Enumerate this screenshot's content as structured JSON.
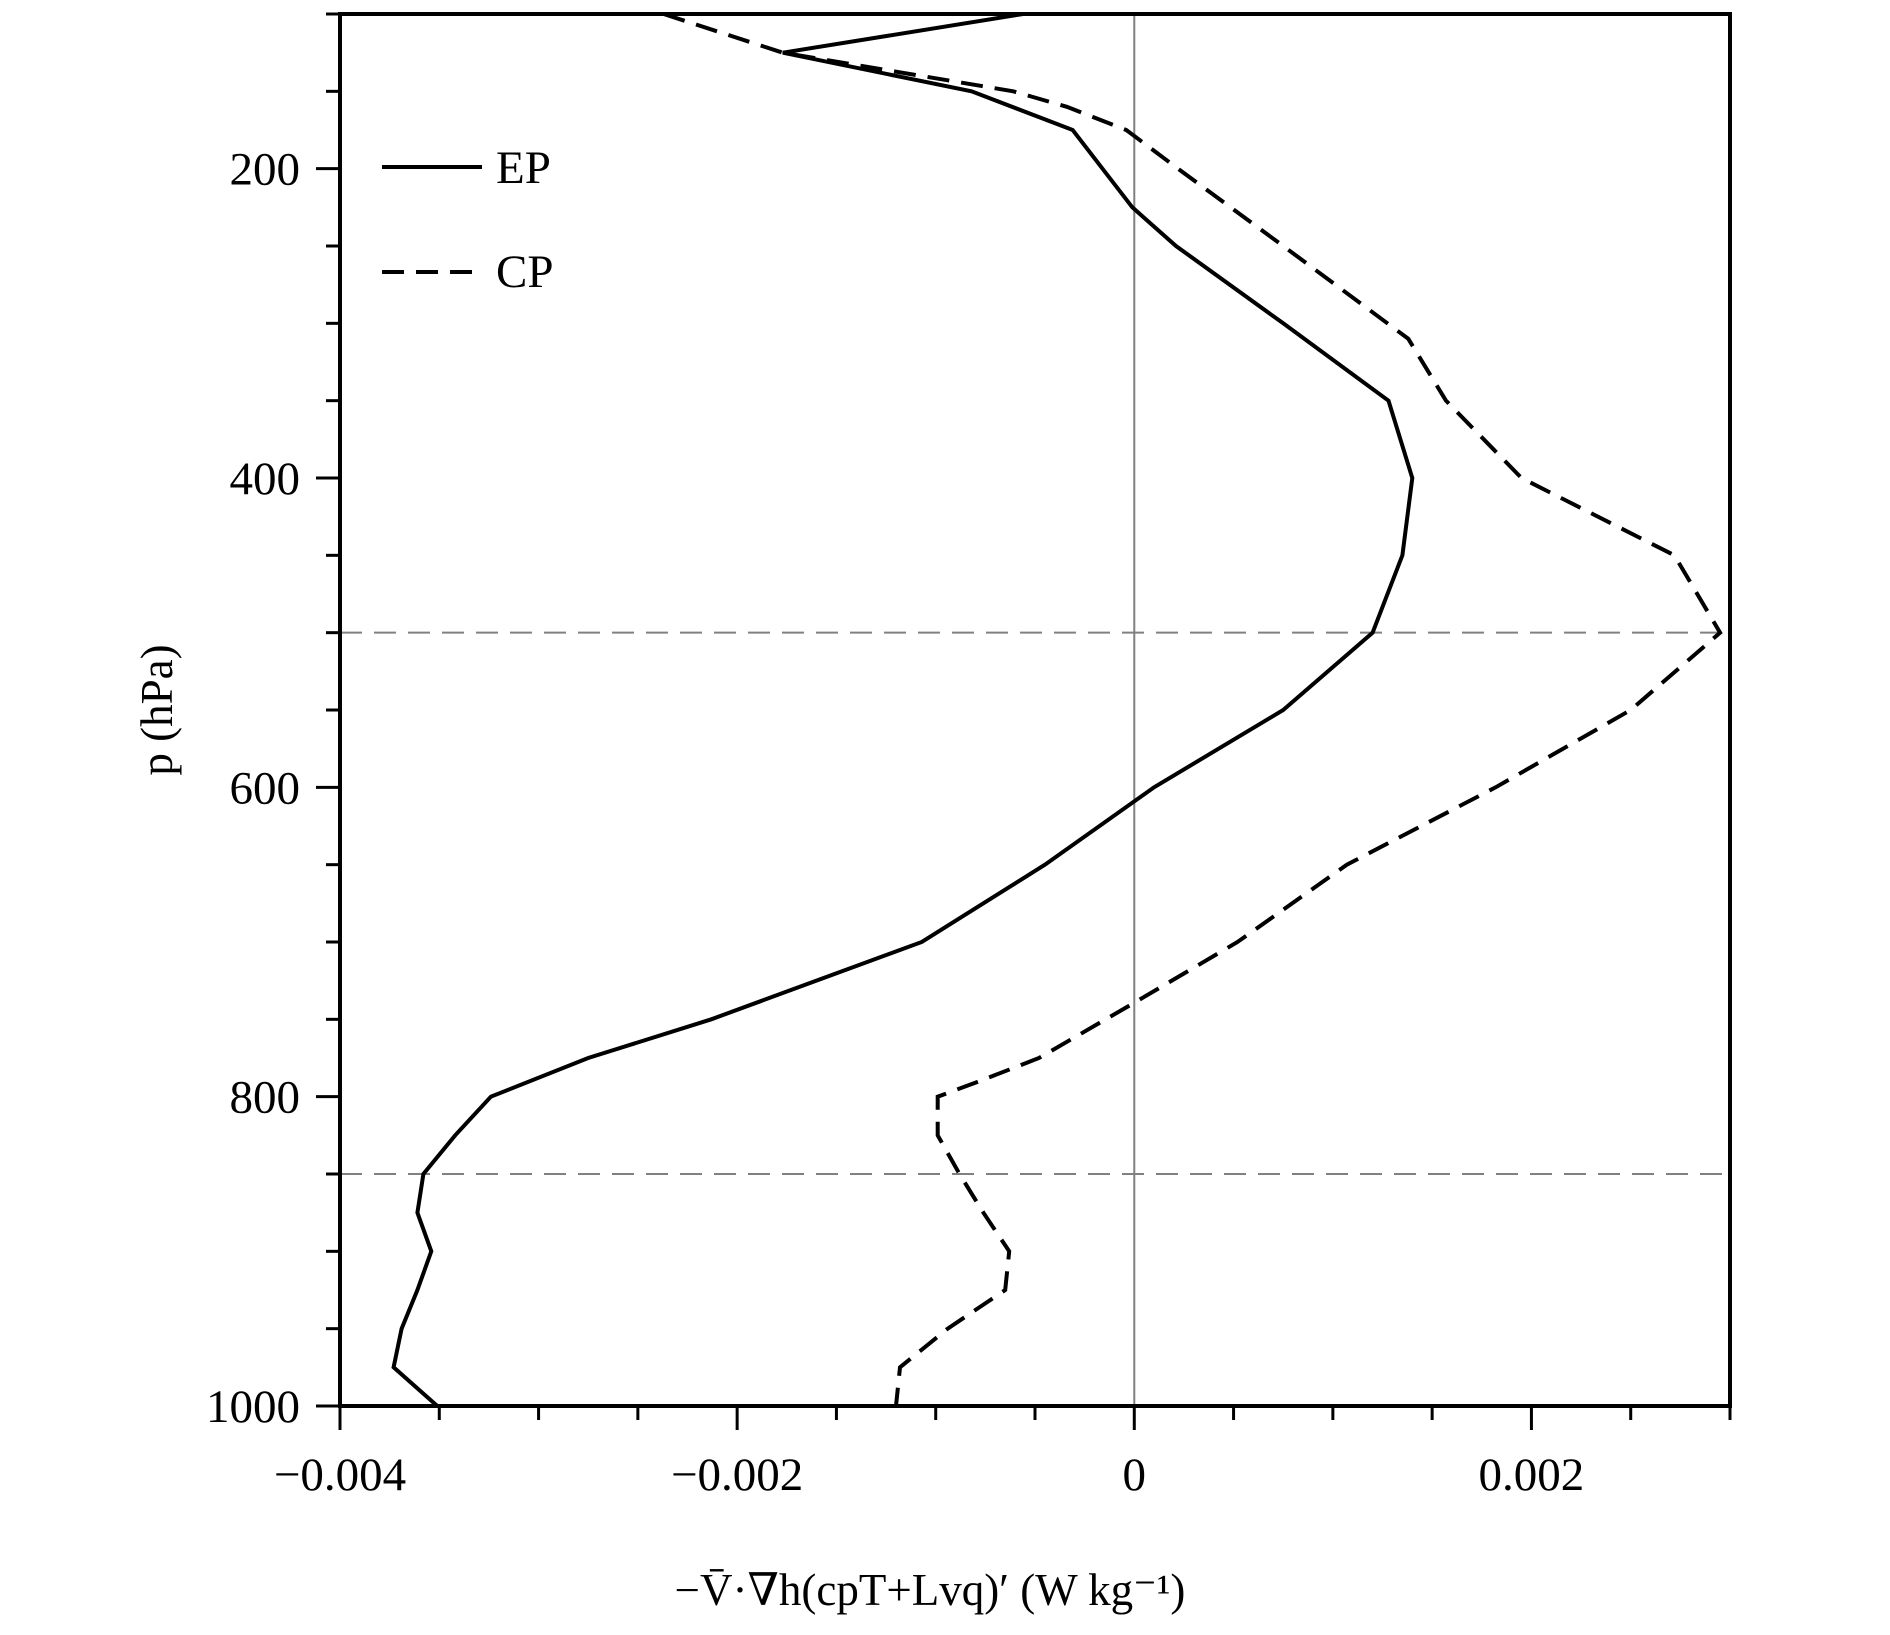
{
  "chart_data": {
    "type": "line",
    "title": "",
    "xlabel": "−V̄·∇h(cpT+Lvq)′ (W kg⁻¹)",
    "ylabel": "p (hPa)",
    "xlim": [
      -0.004,
      0.003
    ],
    "ylim": [
      1000,
      100
    ],
    "y_inverted": true,
    "x_ticks": [
      -0.004,
      -0.002,
      0,
      0.002
    ],
    "x_tick_labels": [
      "−0.004",
      "−0.002",
      "0",
      "0.002"
    ],
    "y_ticks": [
      200,
      400,
      600,
      800,
      1000
    ],
    "y_tick_labels": [
      "200",
      "400",
      "600",
      "800",
      "1000"
    ],
    "grid": false,
    "legend_position": "top-left",
    "reference_lines": {
      "vertical_x": 0,
      "horizontal_p": [
        500,
        850
      ]
    },
    "colors": {
      "series": "#000000",
      "reference": "#808080"
    },
    "series": [
      {
        "name": "EP",
        "style": "solid",
        "points": [
          [
            -0.00056,
            100
          ],
          [
            -0.00177,
            125
          ],
          [
            -0.00082,
            150
          ],
          [
            -0.00031,
            175
          ],
          [
            -0.00016,
            200
          ],
          [
            -1e-05,
            225
          ],
          [
            0.00021,
            250
          ],
          [
            0.00075,
            300
          ],
          [
            0.00128,
            350
          ],
          [
            0.0014,
            400
          ],
          [
            0.00135,
            450
          ],
          [
            0.0012,
            500
          ],
          [
            0.00075,
            550
          ],
          [
            0.0001,
            600
          ],
          [
            -0.00045,
            650
          ],
          [
            -0.00107,
            700
          ],
          [
            -0.00213,
            750
          ],
          [
            -0.00275,
            775
          ],
          [
            -0.00324,
            800
          ],
          [
            -0.00342,
            825
          ],
          [
            -0.00358,
            850
          ],
          [
            -0.00361,
            875
          ],
          [
            -0.00354,
            900
          ],
          [
            -0.00361,
            925
          ],
          [
            -0.00369,
            950
          ],
          [
            -0.00373,
            975
          ],
          [
            -0.00351,
            1000
          ]
        ]
      },
      {
        "name": "CP",
        "style": "dashed",
        "points": [
          [
            -0.00237,
            100
          ],
          [
            -0.00177,
            125
          ],
          [
            -0.00061,
            150
          ],
          [
            -0.00034,
            160
          ],
          [
            -4e-05,
            175
          ],
          [
            0.00022,
            200
          ],
          [
            0.00075,
            250
          ],
          [
            0.00138,
            310
          ],
          [
            0.00157,
            350
          ],
          [
            0.00195,
            400
          ],
          [
            0.00272,
            450
          ],
          [
            0.00295,
            500
          ],
          [
            0.0025,
            550
          ],
          [
            0.00182,
            600
          ],
          [
            0.00107,
            650
          ],
          [
            0.00052,
            700
          ],
          [
            -1e-05,
            740
          ],
          [
            -0.00048,
            775
          ],
          [
            -0.00078,
            790
          ],
          [
            -0.00099,
            800
          ],
          [
            -0.00099,
            825
          ],
          [
            -0.00088,
            850
          ],
          [
            -0.00076,
            875
          ],
          [
            -0.00063,
            900
          ],
          [
            -0.00065,
            925
          ],
          [
            -0.00094,
            950
          ],
          [
            -0.00118,
            975
          ],
          [
            -0.0012,
            1000
          ]
        ]
      }
    ]
  }
}
